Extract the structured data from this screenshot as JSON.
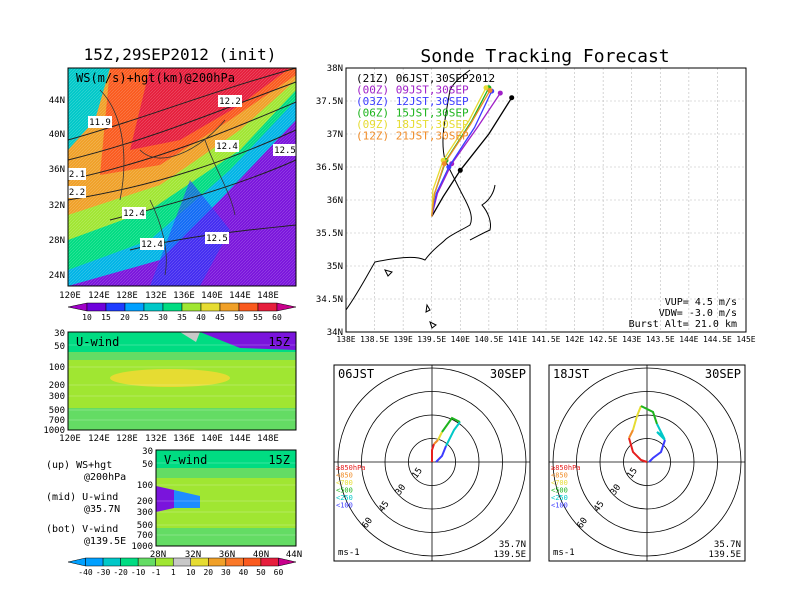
{
  "left_panel": {
    "title": "15Z,29SEP2012 (init)",
    "map_label": "WS(m/s)+hgt(km)@200hPa",
    "lat_ticks": [
      "44N",
      "40N",
      "36N",
      "32N",
      "28N",
      "24N"
    ],
    "lon_ticks": [
      "120E",
      "124E",
      "128E",
      "132E",
      "136E",
      "140E",
      "144E",
      "148E"
    ],
    "contour_labels": [
      "12.2",
      "11.9",
      "12.4",
      "12.5",
      "2.1",
      "2.2",
      "12.4",
      "12.4",
      "12.5"
    ],
    "ws_colorbar": [
      "10",
      "15",
      "20",
      "25",
      "30",
      "35",
      "40",
      "45",
      "50",
      "55",
      "60"
    ],
    "ws_colors": [
      "#a000c8",
      "#6e00dc",
      "#1e3cff",
      "#00a0ff",
      "#00c8c8",
      "#00dc82",
      "#a0e632",
      "#e6dc32",
      "#f0a028",
      "#fa5a1e",
      "#e61e3c",
      "#c8008c"
    ]
  },
  "uwind_panel": {
    "label": "U-wind",
    "time": "15Z",
    "p_ticks": [
      "30",
      "50",
      "100",
      "200",
      "300",
      "500",
      "700",
      "1000"
    ],
    "lon_ticks": [
      "120E",
      "124E",
      "128E",
      "132E",
      "136E",
      "140E",
      "144E",
      "148E"
    ]
  },
  "vwind_panel": {
    "label": "V-wind",
    "time": "15Z",
    "p_ticks": [
      "30",
      "50",
      "100",
      "200",
      "300",
      "500",
      "700",
      "1000"
    ],
    "lat_ticks": [
      "28N",
      "32N",
      "36N",
      "40N",
      "44N"
    ]
  },
  "legend_notes": [
    {
      "a": "(up) WS+hgt",
      "b": "@200hPa"
    },
    {
      "a": "(mid) U-wind",
      "b": "@35.7N"
    },
    {
      "a": "(bot) V-wind",
      "b": "@139.5E"
    }
  ],
  "wind_colorbar": {
    "labels": [
      "-40",
      "-30",
      "-20",
      "-10",
      "-1",
      "1",
      "10",
      "20",
      "30",
      "40",
      "50",
      "60"
    ],
    "colors": [
      "#00a0ff",
      "#00c8c8",
      "#00dc82",
      "#64dc64",
      "#a0e632",
      "#c8c8c8",
      "#e6dc32",
      "#f0a028",
      "#fa7828",
      "#fa5a1e",
      "#e61e3c",
      "#c8008c"
    ]
  },
  "track_panel": {
    "title": "Sonde Tracking Forecast",
    "lat_ticks": [
      "38N",
      "37.5N",
      "37N",
      "36.5N",
      "36N",
      "35.5N",
      "35N",
      "34.5N",
      "34N"
    ],
    "lon_ticks": [
      "138E",
      "138.5E",
      "139E",
      "139.5E",
      "140E",
      "140.5E",
      "141E",
      "141.5E",
      "142E",
      "142.5E",
      "143E",
      "143.5E",
      "144E",
      "144.5E",
      "145E"
    ],
    "legend": [
      {
        "label": "(21Z)  06JST,30SEP2012",
        "color": "#000000"
      },
      {
        "label": "(00Z)  09JST,30SEP",
        "color": "#a020c8"
      },
      {
        "label": "(03Z)  12JST,30SEP",
        "color": "#3c3cff"
      },
      {
        "label": "(06Z)  15JST,30SEP",
        "color": "#1eb41e"
      },
      {
        "label": "(09Z)  18JST,30SEP",
        "color": "#e6dc32"
      },
      {
        "label": "(12Z)  21JST,30SEP",
        "color": "#f08c28"
      }
    ],
    "params": [
      "VUP=  4.5  m/s",
      "VDW= -3.0  m/s",
      "Burst Alt= 21.0  km"
    ]
  },
  "chart_data": [
    {
      "type": "line",
      "title": "Sonde Tracking Forecast",
      "xlim": [
        138,
        145
      ],
      "ylim": [
        34,
        38
      ],
      "series": [
        {
          "name": "(21Z)  06JST,30SEP2012",
          "x": [
            139.5,
            139.7,
            140.0,
            140.5,
            140.9
          ],
          "y": [
            35.75,
            36.05,
            36.45,
            37.0,
            37.55
          ]
        },
        {
          "name": "(00Z)  09JST,30SEP",
          "x": [
            139.5,
            139.6,
            139.85,
            140.3,
            140.7
          ],
          "y": [
            35.75,
            36.1,
            36.55,
            37.1,
            37.62
          ]
        },
        {
          "name": "(03Z)  12JST,30SEP",
          "x": [
            139.5,
            139.58,
            139.8,
            140.25,
            140.55
          ],
          "y": [
            35.75,
            36.1,
            36.5,
            37.1,
            37.65
          ]
        },
        {
          "name": "(06Z)  15JST,30SEP",
          "x": [
            139.5,
            139.55,
            139.75,
            140.2,
            140.5
          ],
          "y": [
            35.75,
            36.1,
            36.6,
            37.2,
            37.7
          ]
        },
        {
          "name": "(09Z)  18JST,30SEP",
          "x": [
            139.5,
            139.52,
            139.7,
            140.15,
            140.45
          ],
          "y": [
            35.75,
            36.15,
            36.6,
            37.2,
            37.7
          ]
        },
        {
          "name": "(12Z)  21JST,30SEP",
          "x": [
            139.5,
            139.55,
            139.72,
            140.18,
            140.52
          ],
          "y": [
            35.75,
            36.1,
            36.55,
            37.15,
            37.66
          ]
        }
      ]
    }
  ],
  "hodographs": [
    {
      "time": "06JST",
      "date": "30SEP",
      "loc1": "35.7N",
      "loc2": "139.5E",
      "unit": "ms-1",
      "rings": [
        "15",
        "30",
        "45",
        "60"
      ],
      "levels": [
        {
          "label": "≥850hPa",
          "color": "#e61e1e"
        },
        {
          "label": "<850",
          "color": "#f08c28"
        },
        {
          "label": "<700",
          "color": "#e6dc32"
        },
        {
          "label": "<500",
          "color": "#1eb41e"
        },
        {
          "label": "<250",
          "color": "#00c8c8"
        },
        {
          "label": "<100",
          "color": "#3c3cff"
        }
      ]
    },
    {
      "time": "18JST",
      "date": "30SEP",
      "loc1": "35.7N",
      "loc2": "139.5E",
      "unit": "ms-1",
      "rings": [
        "15",
        "30",
        "45",
        "60"
      ],
      "levels": [
        {
          "label": "≥850hPa",
          "color": "#e61e1e"
        },
        {
          "label": "<850",
          "color": "#f08c28"
        },
        {
          "label": "<700",
          "color": "#e6dc32"
        },
        {
          "label": "<500",
          "color": "#1eb41e"
        },
        {
          "label": "<250",
          "color": "#00c8c8"
        },
        {
          "label": "<100",
          "color": "#3c3cff"
        }
      ]
    }
  ]
}
